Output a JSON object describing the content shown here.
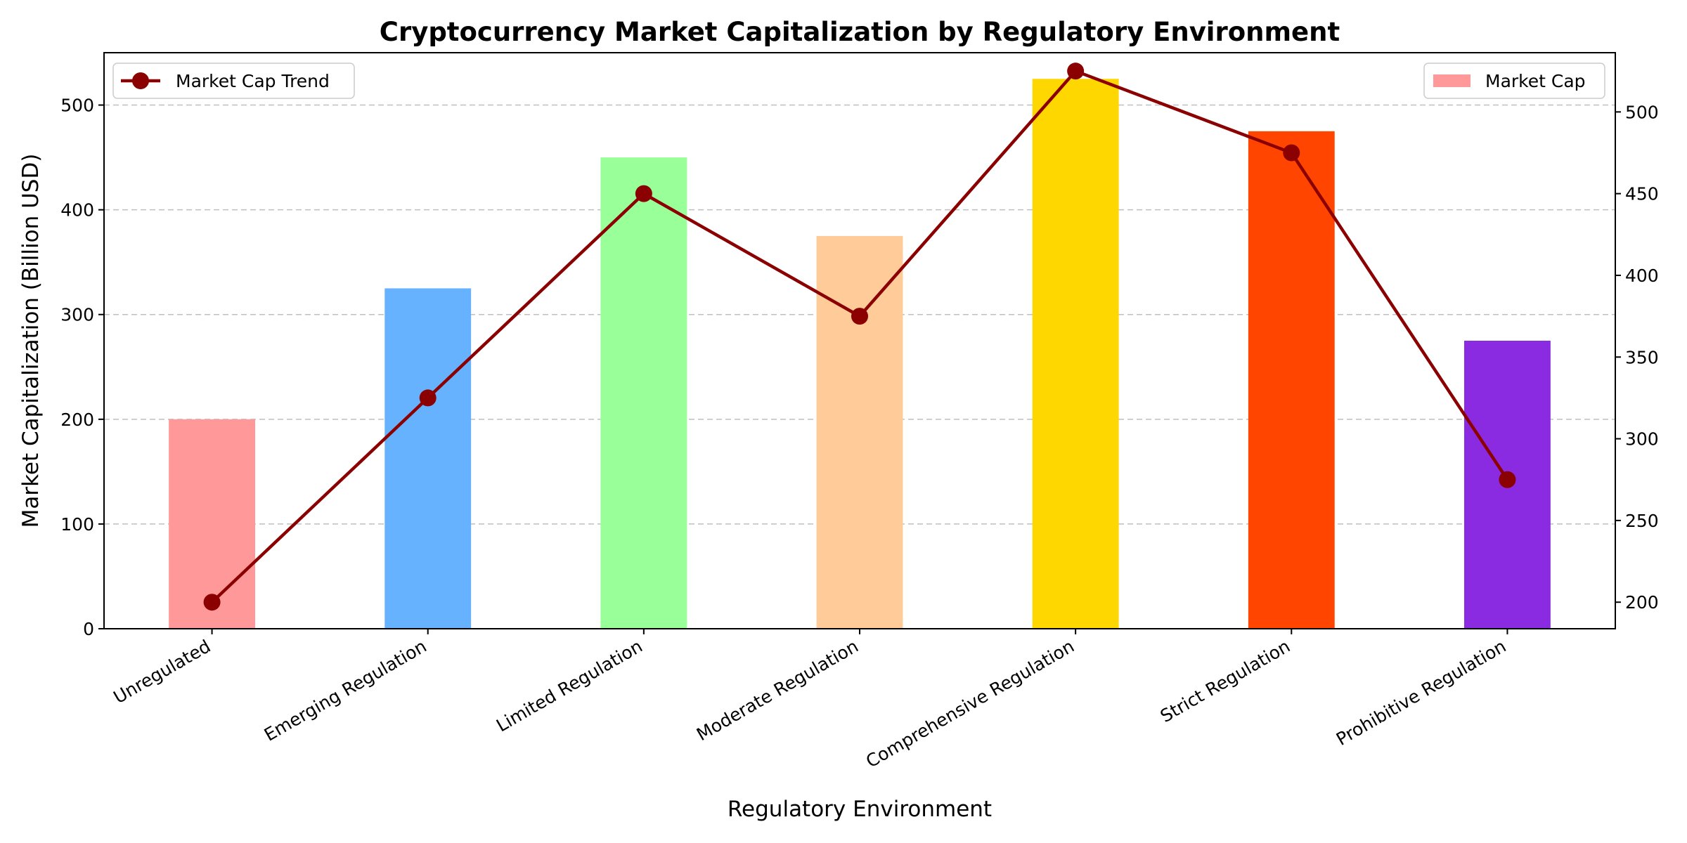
{
  "chart_data": {
    "type": "bar",
    "title": "Cryptocurrency Market Capitalization by Regulatory Environment",
    "xlabel": "Regulatory Environment",
    "ylabel": "Market Capitalization (Billion USD)",
    "categories": [
      "Unregulated",
      "Emerging Regulation",
      "Limited Regulation",
      "Moderate Regulation",
      "Comprehensive Regulation",
      "Strict Regulation",
      "Prohibitive Regulation"
    ],
    "ylim": [
      0,
      550
    ],
    "yticks": [
      0,
      100,
      200,
      300,
      400,
      500
    ],
    "y2lim": [
      183.75,
      536.25
    ],
    "y2ticks": [
      200,
      250,
      300,
      350,
      400,
      450,
      500
    ],
    "grid": "horizontal dashed",
    "series": [
      {
        "name": "Market Cap",
        "kind": "bar",
        "axis": "left",
        "values": [
          200,
          325,
          450,
          375,
          525,
          475,
          275
        ],
        "colors": [
          "#FF9999",
          "#66B2FF",
          "#99FF99",
          "#FFCC99",
          "#FFD700",
          "#FF4500",
          "#8A2BE2"
        ]
      },
      {
        "name": "Market Cap Trend",
        "kind": "line",
        "axis": "right",
        "values": [
          200,
          325,
          450,
          375,
          525,
          475,
          275
        ],
        "color": "#8B0000"
      }
    ],
    "legends": [
      {
        "placement": "upper left",
        "label": "Market Cap Trend"
      },
      {
        "placement": "upper right",
        "label": "Market Cap"
      }
    ]
  }
}
